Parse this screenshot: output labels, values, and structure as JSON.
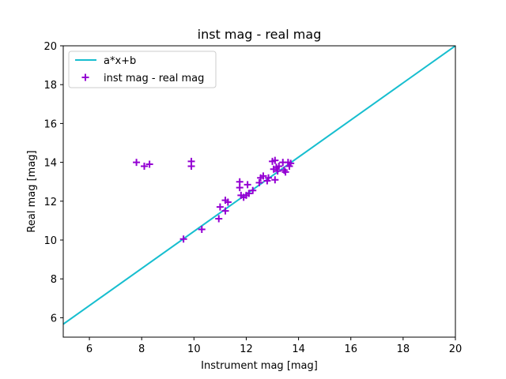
{
  "chart_data": {
    "type": "scatter",
    "title": "inst mag - real mag",
    "xlabel": "Instrument mag [mag]",
    "ylabel": "Real mag [mag]",
    "xlim": [
      5,
      20
    ],
    "ylim": [
      5,
      20
    ],
    "xticks": [
      6,
      8,
      10,
      12,
      14,
      16,
      18,
      20
    ],
    "yticks": [
      6,
      8,
      10,
      12,
      14,
      16,
      18,
      20
    ],
    "grid": false,
    "legend_position": "top-left",
    "series": [
      {
        "name": "a*x+b",
        "kind": "line",
        "color": "#17becf",
        "x": [
          5,
          20
        ],
        "y": [
          5.67,
          20
        ]
      },
      {
        "name": "inst mag - real mag",
        "kind": "scatter",
        "marker": "plus",
        "color": "#9400d3",
        "points": [
          [
            7.8,
            14.0
          ],
          [
            8.1,
            13.8
          ],
          [
            8.3,
            13.9
          ],
          [
            9.9,
            14.05
          ],
          [
            9.9,
            13.8
          ],
          [
            9.6,
            10.05
          ],
          [
            10.3,
            10.55
          ],
          [
            10.95,
            11.1
          ],
          [
            11.0,
            11.7
          ],
          [
            11.2,
            12.05
          ],
          [
            11.2,
            11.5
          ],
          [
            11.3,
            11.95
          ],
          [
            11.75,
            13.0
          ],
          [
            11.75,
            12.7
          ],
          [
            11.8,
            12.3
          ],
          [
            11.9,
            12.2
          ],
          [
            12.0,
            12.3
          ],
          [
            12.05,
            12.85
          ],
          [
            12.1,
            12.4
          ],
          [
            12.25,
            12.55
          ],
          [
            12.5,
            12.95
          ],
          [
            12.55,
            13.2
          ],
          [
            12.65,
            13.3
          ],
          [
            12.8,
            13.05
          ],
          [
            12.85,
            13.2
          ],
          [
            13.0,
            14.05
          ],
          [
            13.05,
            13.65
          ],
          [
            13.1,
            14.1
          ],
          [
            13.1,
            13.1
          ],
          [
            13.15,
            13.75
          ],
          [
            13.2,
            13.55
          ],
          [
            13.25,
            13.8
          ],
          [
            13.4,
            14.0
          ],
          [
            13.45,
            13.6
          ],
          [
            13.5,
            13.5
          ],
          [
            13.6,
            14.0
          ],
          [
            13.65,
            13.8
          ],
          [
            13.7,
            13.95
          ]
        ]
      }
    ]
  }
}
